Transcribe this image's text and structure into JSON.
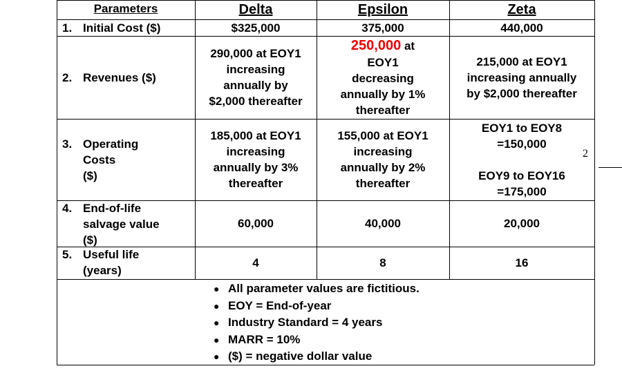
{
  "header": [
    "Parameters",
    "Delta",
    "Epsilon",
    "Zeta"
  ],
  "rows": [
    {
      "number": "1.",
      "label": [
        "Initial Cost ($)"
      ],
      "values": [
        [
          "$325,000"
        ],
        [
          "375,000"
        ],
        [
          "440,000"
        ]
      ]
    },
    {
      "number": "2.",
      "label": [
        "Revenues ($)"
      ],
      "values": [
        [
          "290,000 at EOY1",
          "increasing",
          "annually by",
          "$2,000 thereafter"
        ],
        [
          "EOY1",
          "decreasing",
          "annually by 1%",
          "thereafter"
        ],
        [
          "215,000 at EOY1",
          "increasing annually",
          "by $2,000 thereafter"
        ]
      ],
      "highlight": {
        "amount": "250,000",
        "suffix": "at"
      }
    },
    {
      "number": "3.",
      "label": [
        "Operating",
        "Costs",
        "($)"
      ],
      "values": [
        [
          "185,000 at EOY1",
          "increasing",
          "annually by 3%",
          "thereafter"
        ],
        [
          "155,000 at EOY1",
          "increasing",
          "annually by 2%",
          "thereafter"
        ],
        [
          "EOY1 to EOY8",
          "=150,000",
          "EOY9 to EOY16",
          "=175,000"
        ]
      ]
    },
    {
      "number": "4.",
      "label": [
        "End-of-life",
        "salvage value",
        "($)"
      ],
      "values": [
        [
          "60,000"
        ],
        [
          "40,000"
        ],
        [
          "20,000"
        ]
      ]
    },
    {
      "number": "5.",
      "label": [
        "Useful life",
        "(years)"
      ],
      "values": [
        [
          "4"
        ],
        [
          "8"
        ],
        [
          "16"
        ]
      ]
    }
  ],
  "notes": [
    "All parameter values are fictitious.",
    "EOY = End-of-year",
    "Industry Standard = 4 years",
    "MARR = 10%",
    "($) = negative dollar value"
  ],
  "margin_marker": "2"
}
